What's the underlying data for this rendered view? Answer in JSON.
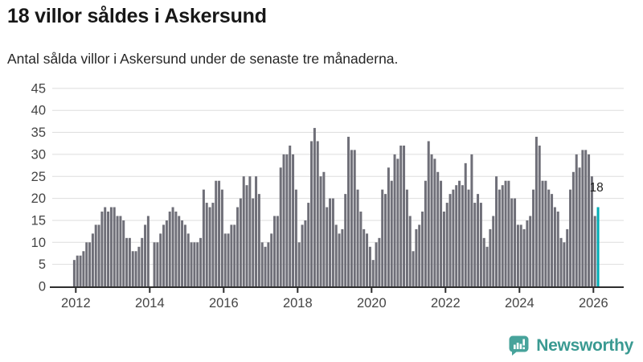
{
  "header": {
    "title": "18 villor såldes i Askersund",
    "subtitle": "Antal sålda villor i Askersund under de senaste tre månaderna."
  },
  "chart_data": {
    "type": "bar",
    "title": "18 villor såldes i Askersund",
    "xlabel": "",
    "ylabel": "",
    "frequency": "monthly",
    "x_start": "2011-12",
    "x_end": "2026-02",
    "values": [
      6,
      7,
      7,
      8,
      10,
      10,
      12,
      14,
      14,
      17,
      18,
      17,
      18,
      18,
      16,
      16,
      15,
      11,
      11,
      8,
      8,
      9,
      11,
      14,
      16,
      0,
      10,
      10,
      12,
      14,
      15,
      17,
      18,
      17,
      16,
      15,
      14,
      12,
      10,
      10,
      10,
      11,
      22,
      19,
      18,
      19,
      24,
      24,
      22,
      12,
      12,
      14,
      14,
      18,
      20,
      25,
      23,
      25,
      20,
      25,
      21,
      10,
      9,
      10,
      12,
      16,
      16,
      27,
      30,
      30,
      32,
      30,
      22,
      10,
      14,
      15,
      19,
      33,
      36,
      33,
      25,
      26,
      18,
      20,
      20,
      14,
      12,
      13,
      21,
      34,
      31,
      31,
      22,
      17,
      13,
      12,
      9,
      6,
      10,
      11,
      22,
      21,
      27,
      24,
      30,
      29,
      32,
      32,
      22,
      16,
      8,
      13,
      14,
      17,
      24,
      33,
      30,
      29,
      26,
      24,
      17,
      19,
      21,
      22,
      23,
      24,
      23,
      28,
      22,
      30,
      19,
      21,
      19,
      11,
      9,
      13,
      16,
      25,
      22,
      23,
      24,
      24,
      20,
      20,
      14,
      14,
      13,
      15,
      16,
      22,
      34,
      32,
      24,
      24,
      22,
      21,
      18,
      17,
      11,
      10,
      13,
      22,
      26,
      30,
      27,
      31,
      31,
      30,
      25,
      16,
      18
    ],
    "ylim": [
      0,
      45
    ],
    "ytick_step": 5,
    "yticks": [
      0,
      5,
      10,
      15,
      20,
      25,
      30,
      35,
      40,
      45
    ],
    "xtick_years": [
      2012,
      2014,
      2016,
      2018,
      2020,
      2022,
      2024,
      2026
    ],
    "grid": true,
    "legend": "none",
    "bar_color": "#6f6f78",
    "highlight": {
      "index": 170,
      "value": 18,
      "label": "18",
      "color": "#00adb5"
    },
    "axis_color": "#2e2e2e",
    "grid_color": "#dedede",
    "tick_label_color": "#454545"
  },
  "footer": {
    "brand": "Newsworthy",
    "logo_icon": "speech-bubble-bar-chart-icon",
    "icon_color": "#47a39b",
    "brand_color": "#3a9a92"
  }
}
